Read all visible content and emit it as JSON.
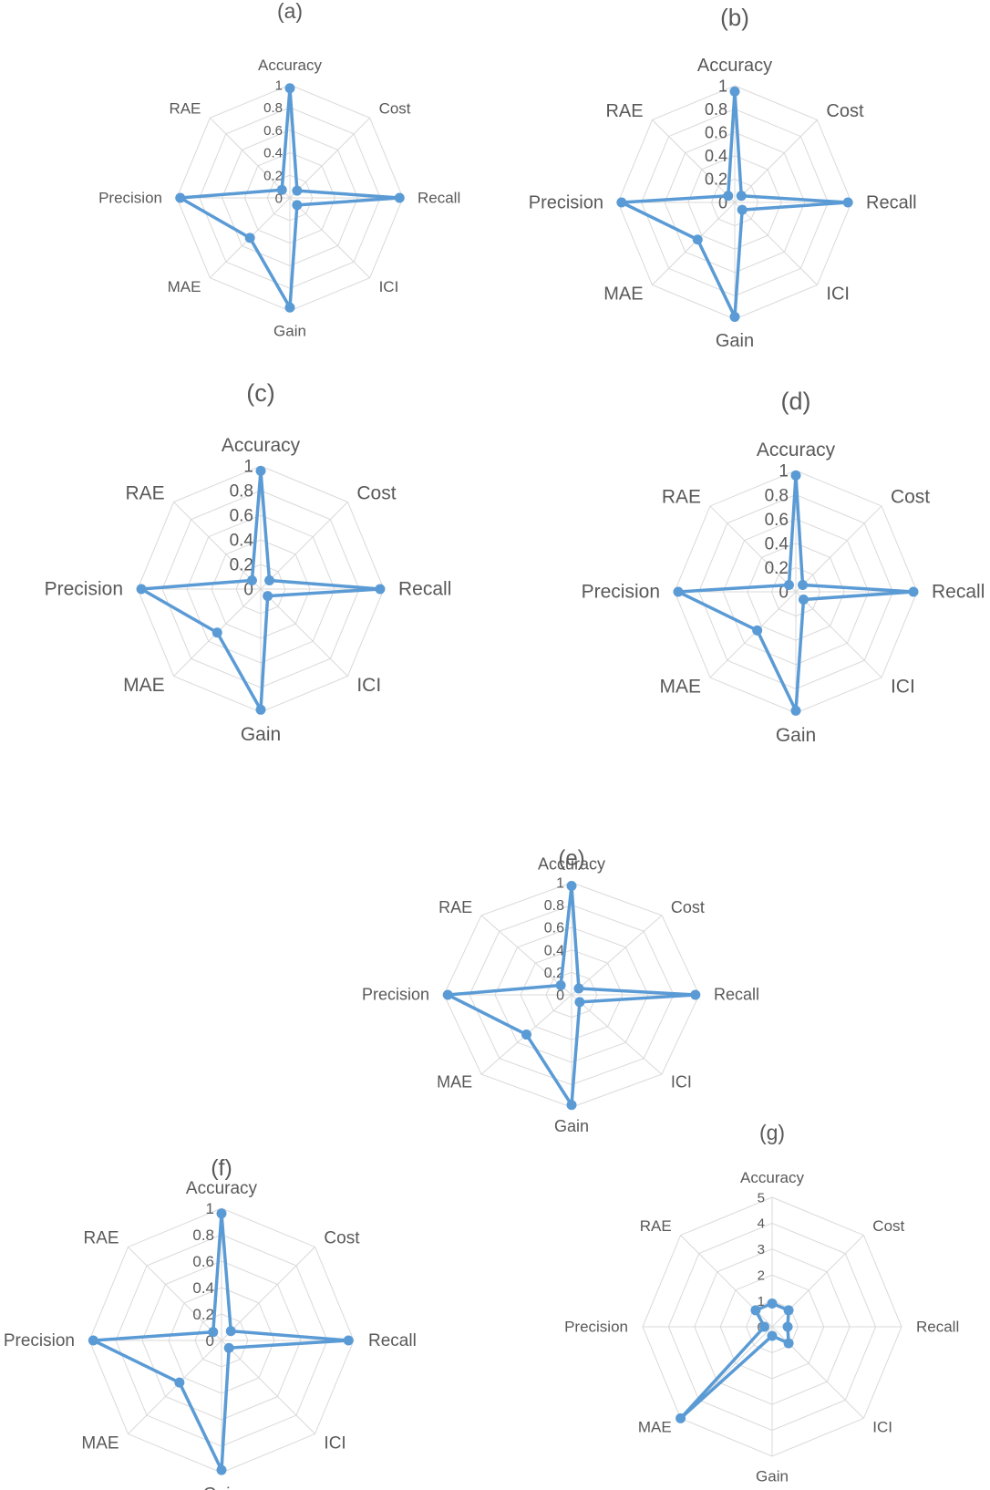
{
  "chart_data": [
    {
      "type": "radar",
      "title": "(a)",
      "categories": [
        "Accuracy",
        "Cost",
        "Recall",
        "ICI",
        "Gain",
        "MAE",
        "Precision",
        "RAE"
      ],
      "rticks": [
        "0",
        "0.2",
        "0.4",
        "0.6",
        "0.8",
        "1"
      ],
      "rlim": [
        0,
        1
      ],
      "grid": true,
      "legend": "none",
      "color": "#5B9BD5",
      "series": [
        {
          "values": [
            0.97,
            0.09,
            0.97,
            0.09,
            0.97,
            0.5,
            0.97,
            0.1
          ]
        }
      ]
    },
    {
      "type": "radar",
      "title": "(b)",
      "categories": [
        "Accuracy",
        "Cost",
        "Recall",
        "ICI",
        "Gain",
        "MAE",
        "Precision",
        "RAE"
      ],
      "rticks": [
        "0",
        "0.2",
        "0.4",
        "0.6",
        "0.8",
        "1"
      ],
      "rlim": [
        0,
        1
      ],
      "grid": true,
      "legend": "none",
      "color": "#5B9BD5",
      "series": [
        {
          "values": [
            0.95,
            0.08,
            0.97,
            0.09,
            0.98,
            0.45,
            0.97,
            0.08
          ]
        }
      ]
    },
    {
      "type": "radar",
      "title": "(c)",
      "categories": [
        "Accuracy",
        "Cost",
        "Recall",
        "ICI",
        "Gain",
        "MAE",
        "Precision",
        "RAE"
      ],
      "rticks": [
        "0",
        "0.2",
        "0.4",
        "0.6",
        "0.8",
        "1"
      ],
      "rlim": [
        0,
        1
      ],
      "grid": true,
      "legend": "none",
      "color": "#5B9BD5",
      "series": [
        {
          "values": [
            0.96,
            0.1,
            0.97,
            0.08,
            0.98,
            0.5,
            0.97,
            0.1
          ]
        }
      ]
    },
    {
      "type": "radar",
      "title": "(d)",
      "categories": [
        "Accuracy",
        "Cost",
        "Recall",
        "ICI",
        "Gain",
        "MAE",
        "Precision",
        "RAE"
      ],
      "rticks": [
        "0",
        "0.2",
        "0.4",
        "0.6",
        "0.8",
        "1"
      ],
      "rlim": [
        0,
        1
      ],
      "grid": true,
      "legend": "none",
      "color": "#5B9BD5",
      "series": [
        {
          "values": [
            0.96,
            0.08,
            0.97,
            0.09,
            0.98,
            0.45,
            0.97,
            0.08
          ]
        }
      ]
    },
    {
      "type": "radar",
      "title": "(e)",
      "categories": [
        "Accuracy",
        "Cost",
        "Recall",
        "ICI",
        "Gain",
        "MAE",
        "Precision",
        "RAE"
      ],
      "rticks": [
        "0",
        "0.2",
        "0.4",
        "0.6",
        "0.8",
        "1"
      ],
      "rlim": [
        0,
        1
      ],
      "grid": true,
      "legend": "none",
      "color": "#5B9BD5",
      "series": [
        {
          "values": [
            0.97,
            0.08,
            0.97,
            0.09,
            0.98,
            0.5,
            0.97,
            0.12
          ]
        }
      ]
    },
    {
      "type": "radar",
      "title": "(f)",
      "categories": [
        "Accuracy",
        "Cost",
        "Recall",
        "ICI",
        "Gain",
        "MAE",
        "Precision",
        "RAE"
      ],
      "rticks": [
        "0",
        "0.2",
        "0.4",
        "0.6",
        "0.8",
        "1"
      ],
      "rlim": [
        0,
        1
      ],
      "grid": true,
      "legend": "none",
      "color": "#5B9BD5",
      "series": [
        {
          "values": [
            0.96,
            0.1,
            0.96,
            0.08,
            0.98,
            0.45,
            0.97,
            0.09
          ]
        }
      ]
    },
    {
      "type": "radar",
      "title": "(g)",
      "categories": [
        "Accuracy",
        "Cost",
        "Recall",
        "ICI",
        "Gain",
        "MAE",
        "Precision",
        "RAE"
      ],
      "rticks": [
        "0",
        "1",
        "2",
        "3",
        "4",
        "5"
      ],
      "rlim": [
        0,
        5
      ],
      "grid": true,
      "legend": "none",
      "color": "#5B9BD5",
      "series": [
        {
          "values": [
            0.9,
            0.9,
            0.6,
            0.9,
            0.35,
            5.0,
            0.3,
            0.9
          ]
        }
      ]
    }
  ]
}
